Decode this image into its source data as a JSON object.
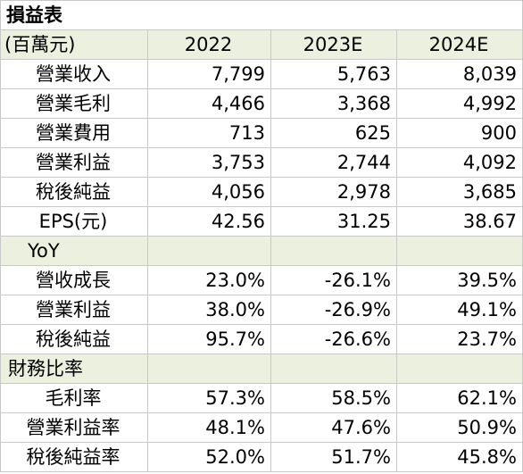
{
  "title": "損益表",
  "header": {
    "unit": "(百萬元)",
    "columns": [
      "2022",
      "2023E",
      "2024E"
    ]
  },
  "income": [
    {
      "label": "營業收入",
      "values": [
        "7,799",
        "5,763",
        "8,039"
      ]
    },
    {
      "label": "營業毛利",
      "values": [
        "4,466",
        "3,368",
        "4,992"
      ]
    },
    {
      "label": "營業費用",
      "values": [
        "713",
        "625",
        "900"
      ]
    },
    {
      "label": "營業利益",
      "values": [
        "3,753",
        "2,744",
        "4,092"
      ]
    },
    {
      "label": "稅後純益",
      "values": [
        "4,056",
        "2,978",
        "3,685"
      ]
    },
    {
      "label": "EPS(元)",
      "values": [
        "42.56",
        "31.25",
        "38.67"
      ]
    }
  ],
  "yoy": {
    "title": "YoY",
    "rows": [
      {
        "label": "營收成長",
        "values": [
          "23.0%",
          "-26.1%",
          "39.5%"
        ]
      },
      {
        "label": "營業利益",
        "values": [
          "38.0%",
          "-26.9%",
          "49.1%"
        ]
      },
      {
        "label": "稅後純益",
        "values": [
          "95.7%",
          "-26.6%",
          "23.7%"
        ]
      }
    ]
  },
  "ratios": {
    "title": "財務比率",
    "rows": [
      {
        "label": "毛利率",
        "values": [
          "57.3%",
          "58.5%",
          "62.1%"
        ]
      },
      {
        "label": "營業利益率",
        "values": [
          "48.1%",
          "47.6%",
          "50.9%"
        ]
      },
      {
        "label": "稅後純益率",
        "values": [
          "52.0%",
          "51.7%",
          "45.8%"
        ]
      }
    ]
  },
  "colors": {
    "header_fill": "#ebf1de",
    "grid": "#c8c8c8"
  }
}
